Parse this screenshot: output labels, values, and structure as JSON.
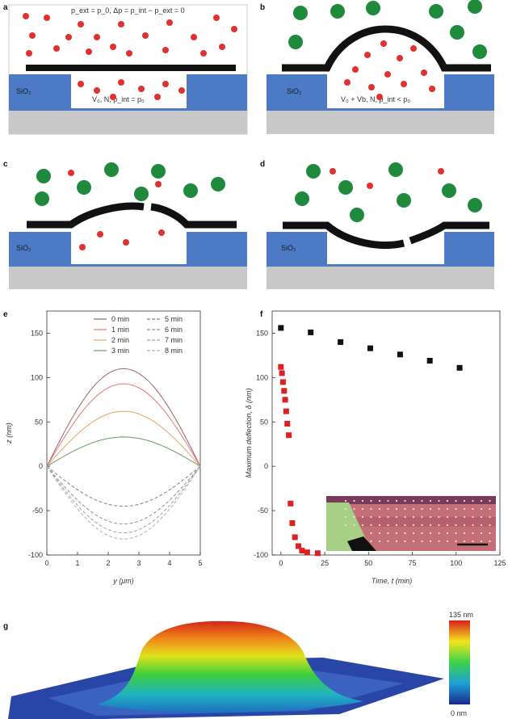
{
  "panels": {
    "a": {
      "label": "a",
      "eq_top": "p_ext = p_0, Δp = p_int − p_ext = 0",
      "substrate": "SiO₂",
      "eq_bottom": "V₀, N, p_int = p₀"
    },
    "b": {
      "label": "b",
      "substrate": "SiO₂",
      "eq_bottom": "V₀ + Vb, N, p_int < p₀"
    },
    "c": {
      "label": "c",
      "substrate": "SiO₂"
    },
    "d": {
      "label": "d",
      "substrate": "SiO₂"
    },
    "g": {
      "label": "g",
      "cbar_max": "135 nm",
      "cbar_min": "0 nm"
    }
  },
  "colors": {
    "substrate_blue": "#4c7ac4",
    "base_grey": "#c8c8c8",
    "membrane": "#111111",
    "inside_molecule": "#e03030",
    "outside_molecule": "#1f8a3c"
  },
  "chart_data": [
    {
      "panel": "e",
      "type": "line",
      "xlabel": "y (μm)",
      "ylabel": "z (nm)",
      "xlim": [
        0,
        5
      ],
      "ylim": [
        -100,
        175
      ],
      "xticks": [
        0,
        1,
        2,
        3,
        4,
        5
      ],
      "yticks": [
        -100,
        -50,
        0,
        50,
        100,
        150
      ],
      "series": [
        {
          "name": "0 min",
          "peak": 110,
          "color": "#a06070",
          "dash": "solid"
        },
        {
          "name": "1 min",
          "peak": 93,
          "color": "#e07a7a",
          "dash": "solid"
        },
        {
          "name": "2 min",
          "peak": 62,
          "color": "#e0a860",
          "dash": "solid"
        },
        {
          "name": "3 min",
          "peak": 33,
          "color": "#6a9a6a",
          "dash": "solid"
        },
        {
          "name": "5 min",
          "peak": -45,
          "color": "#808080",
          "dash": "dashed"
        },
        {
          "name": "6 min",
          "peak": -65,
          "color": "#909090",
          "dash": "dashed"
        },
        {
          "name": "7 min",
          "peak": -75,
          "color": "#a0a0a0",
          "dash": "dashed"
        },
        {
          "name": "8 min",
          "peak": -82,
          "color": "#b0b0b0",
          "dash": "dashed"
        }
      ]
    },
    {
      "panel": "f",
      "type": "scatter",
      "xlabel": "Time, t (min)",
      "ylabel": "Maximum deflection, δ (nm)",
      "xlim": [
        -5,
        125
      ],
      "ylim": [
        -100,
        175
      ],
      "xticks": [
        0,
        25,
        50,
        75,
        100,
        125
      ],
      "yticks": [
        -100,
        -50,
        0,
        50,
        100,
        150
      ],
      "series": [
        {
          "name": "black",
          "color": "#111111",
          "x": [
            0,
            17,
            34,
            51,
            68,
            85,
            102
          ],
          "y": [
            156,
            151,
            140,
            133,
            126,
            119,
            111
          ]
        },
        {
          "name": "red",
          "color": "#dd2020",
          "x": [
            0,
            0.6,
            1.2,
            1.8,
            2.4,
            3,
            3.6,
            4.5,
            5.5,
            6.5,
            8,
            10,
            12,
            15,
            21
          ],
          "y": [
            112,
            105,
            95,
            85,
            75,
            62,
            48,
            35,
            -42,
            -64,
            -80,
            -90,
            -95,
            -97,
            -98
          ]
        }
      ]
    }
  ]
}
